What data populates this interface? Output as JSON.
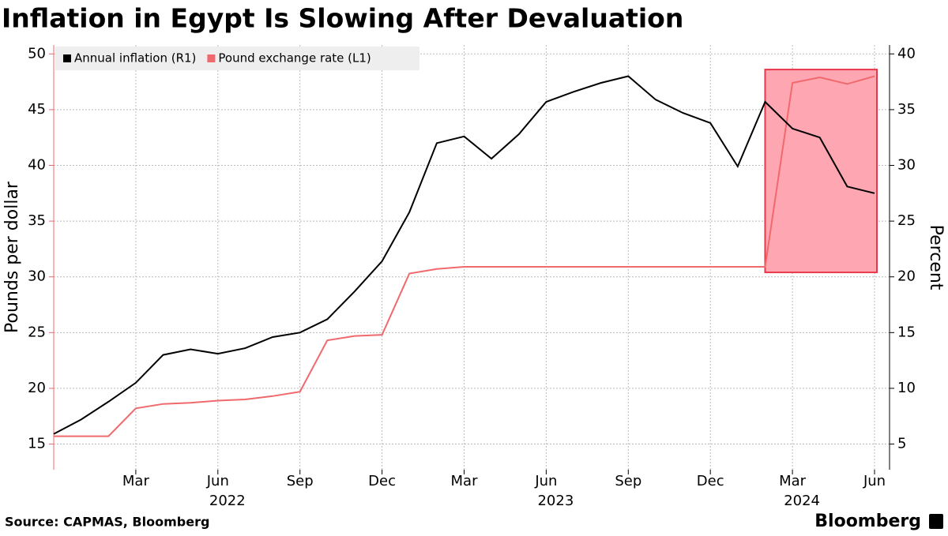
{
  "chart_data": {
    "type": "line",
    "title": "Inflation in Egypt Is Slowing After Devaluation",
    "ylabel": "Pounds per dollar",
    "y2label": "Percent",
    "source": "Source: CAPMAS, Bloomberg",
    "brand": "Bloomberg",
    "categories": [
      null,
      null,
      null,
      "Mar",
      null,
      null,
      "Jun",
      null,
      null,
      "Sep",
      null,
      null,
      "Dec",
      null,
      null,
      "Mar",
      null,
      null,
      "Jun",
      null,
      null,
      "Sep",
      null,
      null,
      "Dec",
      null,
      null,
      "Mar",
      null,
      null,
      "Jun"
    ],
    "years": [
      null,
      null,
      null,
      null,
      null,
      null,
      "2022",
      null,
      null,
      null,
      null,
      null,
      null,
      null,
      null,
      null,
      null,
      null,
      "2023",
      null,
      null,
      null,
      null,
      null,
      null,
      null,
      null,
      "2024",
      null,
      null,
      null
    ],
    "series": [
      {
        "name": "Annual inflation (R1)",
        "color": "#000000",
        "axis": "y2",
        "values": [
          5.9,
          7.2,
          8.8,
          10.5,
          13.0,
          13.5,
          13.1,
          13.6,
          14.6,
          15.0,
          16.2,
          18.7,
          21.4,
          25.8,
          32.0,
          32.6,
          30.6,
          32.8,
          35.7,
          36.6,
          37.4,
          38.0,
          35.9,
          34.7,
          33.8,
          29.9,
          35.7,
          33.3,
          32.5,
          28.1,
          27.5
        ]
      },
      {
        "name": "Pound exchange rate (L1)",
        "color": "#f0696d",
        "values": [
          15.7,
          15.7,
          15.7,
          18.2,
          18.6,
          18.7,
          18.9,
          19.0,
          19.3,
          19.7,
          24.3,
          24.7,
          24.8,
          30.3,
          30.7,
          30.9,
          30.9,
          30.9,
          30.9,
          30.9,
          30.9,
          30.9,
          30.9,
          30.9,
          30.9,
          30.9,
          30.9,
          47.4,
          47.9,
          47.3,
          48.0
        ]
      }
    ],
    "highlight": {
      "from": 26,
      "to": 30,
      "ylim": [
        30.4,
        48.6
      ],
      "color": "#ffa6b3",
      "edge": "#e8394a"
    },
    "ylim": [
      12.7,
      50.8
    ],
    "yticks": [
      15,
      20,
      25,
      30,
      35,
      40,
      45,
      50
    ],
    "y2lim": [
      2.7,
      40.8
    ],
    "y2ticks": [
      5,
      10,
      15,
      20,
      25,
      30,
      35,
      40
    ],
    "grid": true,
    "legend": "top-left"
  }
}
